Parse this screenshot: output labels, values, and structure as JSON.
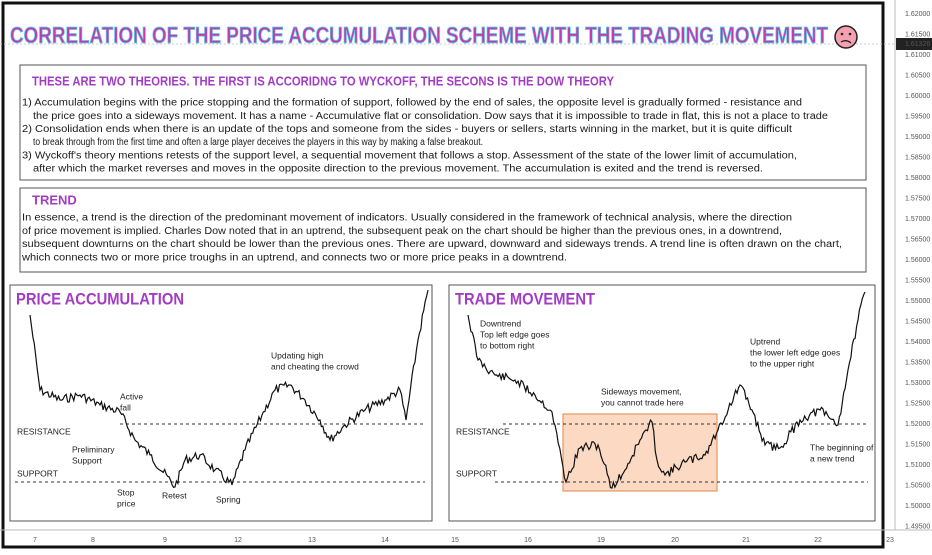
{
  "title": "CORRELATION OF THE PRICE ACCUMULATION SCHEME WITH THE TRADING MOVEMENT",
  "theories": {
    "heading": "THESE ARE TWO THEORIES. THE FIRST IS ACCORIDNG TO WYCKOFF, THE SECONS IS THE DOW THEORY",
    "items": [
      [
        "1) Accumulation begins with the price stopping and the formation of support, followed by the end of sales, the opposite level is gradually formed - resistance and",
        "the price goes into a sideways movement. It has a name - Accumulative flat or consolidation. Dow says that it is impossible to trade in flat, this is not a place to trade"
      ],
      [
        "2) Consolidation ends when there is an update of the tops and someone from the sides - buyers or sellers, starts winning in the market, but it is quite difficult",
        "to break through from the first time and often a large player deceives the players in this way by making a false breakout."
      ],
      [
        "3) Wyckoff's theory mentions retests of the support level, a sequential movement that follows a stop. Assessment of the state of the lower limit of accumulation,",
        "after which the market reverses and moves in the opposite direction to the previous movement. The accumulation is exited and the trend is reversed."
      ]
    ]
  },
  "trend": {
    "heading": "TREND",
    "lines": [
      "In essence, a trend is the direction of the predominant movement of indicators. Usually considered in the framework of technical analysis, where the direction",
      "of price movement is implied. Charles Dow noted that in an uptrend, the subsequent peak on the chart should be higher than the previous ones, in a downtrend,",
      "subsequent downturns on the chart should be lower than the previous ones. There are upward, downward and sideways trends. A trend line is often drawn on the chart,",
      "which connects two or more price troughs in an uptrend, and connects two or more price peaks in a downtrend."
    ]
  },
  "price_accumulation": {
    "title": "PRICE ACCUMULATION",
    "resistance": "RESISTANCE",
    "support": "SUPPORT",
    "preliminary_support": [
      "Preliminary",
      "Support"
    ],
    "active_fall": [
      "Active",
      "fall"
    ],
    "stop_price": [
      "Stop",
      "price"
    ],
    "retest": "Retest",
    "spring": "Spring",
    "updating_high": [
      "Updating high",
      "and cheating the crowd"
    ]
  },
  "trade_movement": {
    "title": "TRADE MOVEMENT",
    "resistance": "RESISTANCE",
    "support": "SUPPORT",
    "downtrend": [
      "Downtrend",
      "Top left edge goes",
      "to bottom right"
    ],
    "sideways": [
      "Sideways movement,",
      "you cannot trade here"
    ],
    "uptrend": [
      "Uptrend",
      "the lower left edge goes",
      "to the upper right"
    ],
    "new_trend": [
      "The beginning of",
      "a new trend"
    ]
  },
  "price_axis": {
    "labels": [
      "1.62000",
      "1.61500",
      "1.61000",
      "1.60500",
      "1.60000",
      "1.59500",
      "1.59000",
      "1.58500",
      "1.58000",
      "1.57500",
      "1.57000",
      "1.56500",
      "1.56000",
      "1.55500",
      "1.55000",
      "1.54500",
      "1.54000",
      "1.53500",
      "1.53000",
      "1.52500",
      "1.52000",
      "1.51500",
      "1.51000",
      "1.50500",
      "1.50000",
      "1.49500"
    ],
    "current": "1.61326"
  },
  "time_axis": [
    "7",
    "8",
    "9",
    "12",
    "13",
    "14",
    "15",
    "16",
    "19",
    "20",
    "21",
    "22",
    "23"
  ]
}
